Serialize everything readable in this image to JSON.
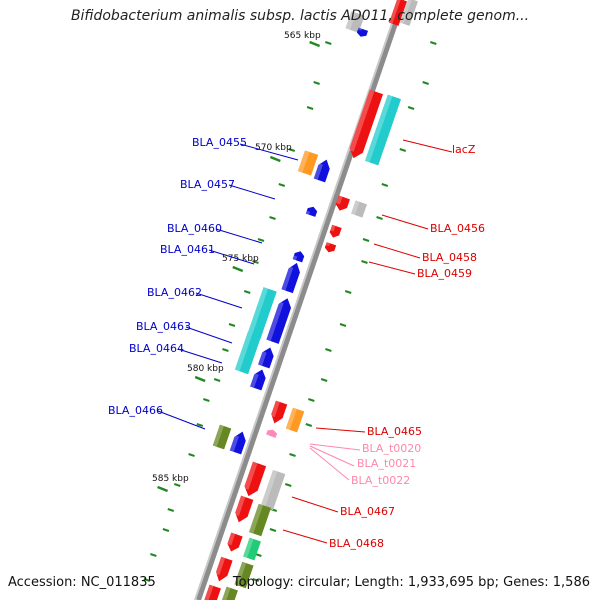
{
  "title": "Bifidobacterium animalis subsp. lactis AD011, complete genom...",
  "accession": "Accession: NC_011835",
  "summary": "Topology: circular; Length: 1,933,695 bp; Genes: 1,586",
  "colors": {
    "backbone": "#8c8c8c",
    "forward_label": "#0000cc",
    "reverse_label": "#dd0000",
    "trna_label": "#ff88aa",
    "tick": "#228822",
    "red": "#ee1111",
    "blue": "#1111dd",
    "cyan": "#22cccc",
    "orange": "#ff9922",
    "gray": "#bbbbbb",
    "olive": "#668822",
    "green": "#22cc77",
    "pink": "#ff88bb"
  },
  "ruler_labels": [
    "565 kbp",
    "570 kbp",
    "575 kbp",
    "580 kbp",
    "585 kbp"
  ],
  "gene_labels": [
    {
      "text": "lacZ",
      "strand": "reverse"
    },
    {
      "text": "BLA_0455",
      "strand": "forward"
    },
    {
      "text": "BLA_0457",
      "strand": "forward"
    },
    {
      "text": "BLA_0456",
      "strand": "reverse"
    },
    {
      "text": "BLA_0460",
      "strand": "forward"
    },
    {
      "text": "BLA_0461",
      "strand": "forward"
    },
    {
      "text": "BLA_0458",
      "strand": "reverse"
    },
    {
      "text": "BLA_0459",
      "strand": "reverse"
    },
    {
      "text": "BLA_0462",
      "strand": "forward"
    },
    {
      "text": "BLA_0463",
      "strand": "forward"
    },
    {
      "text": "BLA_0464",
      "strand": "forward"
    },
    {
      "text": "BLA_0466",
      "strand": "forward"
    },
    {
      "text": "BLA_0465",
      "strand": "reverse"
    },
    {
      "text": "BLA_t0020",
      "strand": "trna"
    },
    {
      "text": "BLA_t0021",
      "strand": "trna"
    },
    {
      "text": "BLA_t0022",
      "strand": "trna"
    },
    {
      "text": "BLA_0467",
      "strand": "reverse"
    },
    {
      "text": "BLA_0468",
      "strand": "reverse"
    }
  ]
}
